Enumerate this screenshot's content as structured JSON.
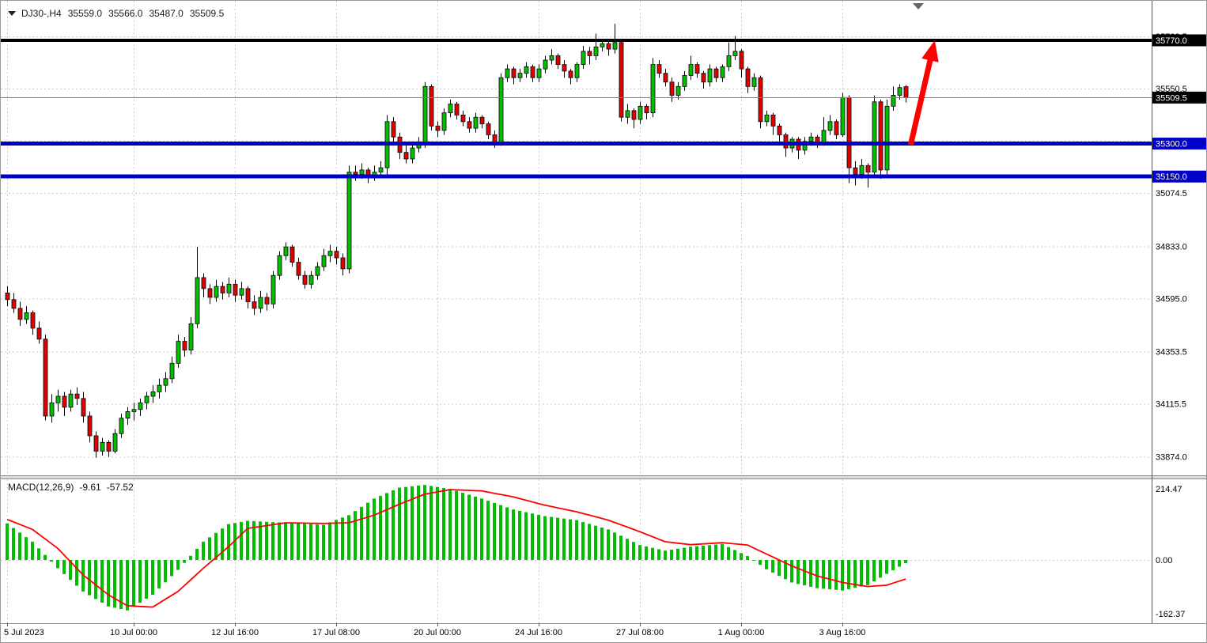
{
  "header": {
    "symbol": "DJ30-,H4",
    "open": "35559.0",
    "high": "35566.0",
    "low": "35487.0",
    "close": "35509.5"
  },
  "colors": {
    "up": "#00BE00",
    "down": "#DE0202",
    "outline": "#000000",
    "grid": "#C8C8C8",
    "blue_level": "#0000C8",
    "black_level": "#000000",
    "current_line": "#808080",
    "macd_hist": "#00BE00",
    "macd_signal": "#FF0000",
    "arrow": "#FF0000",
    "badge_text": "#FFFFFF",
    "axis_text": "#000000"
  },
  "chart_data": [
    {
      "type": "candlestick",
      "title": "DJ30-,H4",
      "ylim": [
        33790,
        35950
      ],
      "grid": true,
      "y_ticks": [
        35788.5,
        35550.5,
        35312.5,
        35074.5,
        34833.0,
        34595.0,
        34353.5,
        34115.5,
        33874.0
      ],
      "x_ticks": [
        {
          "index": 0,
          "label": "5 Jul 2023"
        },
        {
          "index": 20,
          "label": "10 Jul 00:00"
        },
        {
          "index": 36,
          "label": "12 Jul 16:00"
        },
        {
          "index": 52,
          "label": "17 Jul 08:00"
        },
        {
          "index": 68,
          "label": "20 Jul 00:00"
        },
        {
          "index": 84,
          "label": "24 Jul 16:00"
        },
        {
          "index": 100,
          "label": "27 Jul 08:00"
        },
        {
          "index": 116,
          "label": "1 Aug 00:00"
        },
        {
          "index": 132,
          "label": "3 Aug 16:00"
        }
      ],
      "levels": [
        {
          "price": 35770.0,
          "label": "35770.0",
          "color": "#000000",
          "width": 4,
          "name": "resistance-35770"
        },
        {
          "price": 35300.0,
          "label": "35300.0",
          "color": "#0000C8",
          "width": 5,
          "name": "support-35300"
        },
        {
          "price": 35150.0,
          "label": "35150.0",
          "color": "#0000C8",
          "width": 5,
          "name": "support-35150"
        }
      ],
      "current_price": {
        "value": 35509.5,
        "label": "35509.5"
      },
      "annotations": {
        "arrow": {
          "from_index": 142.8,
          "from_price": 35295,
          "to_index": 146.6,
          "to_price": 35770,
          "color": "#FF0000"
        }
      },
      "candles": [
        [
          34620,
          34650,
          34560,
          34590
        ],
        [
          34590,
          34620,
          34530,
          34550
        ],
        [
          34550,
          34580,
          34470,
          34500
        ],
        [
          34500,
          34560,
          34480,
          34530
        ],
        [
          34530,
          34540,
          34430,
          34460
        ],
        [
          34460,
          34490,
          34390,
          34410
        ],
        [
          34410,
          34430,
          34040,
          34060
        ],
        [
          34060,
          34160,
          34030,
          34120
        ],
        [
          34120,
          34180,
          34080,
          34150
        ],
        [
          34150,
          34170,
          34060,
          34100
        ],
        [
          34100,
          34180,
          34080,
          34160
        ],
        [
          34160,
          34190,
          34110,
          34140
        ],
        [
          34140,
          34170,
          34030,
          34060
        ],
        [
          34060,
          34080,
          33940,
          33970
        ],
        [
          33970,
          33990,
          33870,
          33900
        ],
        [
          33900,
          33960,
          33880,
          33940
        ],
        [
          33940,
          33950,
          33874,
          33900
        ],
        [
          33900,
          34000,
          33890,
          33980
        ],
        [
          33980,
          34070,
          33960,
          34050
        ],
        [
          34050,
          34100,
          34020,
          34080
        ],
        [
          34080,
          34120,
          34040,
          34090
        ],
        [
          34090,
          34140,
          34060,
          34120
        ],
        [
          34120,
          34170,
          34090,
          34150
        ],
        [
          34150,
          34200,
          34120,
          34170
        ],
        [
          34170,
          34230,
          34140,
          34200
        ],
        [
          34200,
          34260,
          34170,
          34230
        ],
        [
          34230,
          34330,
          34210,
          34300
        ],
        [
          34300,
          34430,
          34280,
          34400
        ],
        [
          34400,
          34420,
          34330,
          34360
        ],
        [
          34360,
          34510,
          34340,
          34480
        ],
        [
          34480,
          34830,
          34460,
          34690
        ],
        [
          34690,
          34710,
          34600,
          34640
        ],
        [
          34640,
          34660,
          34570,
          34600
        ],
        [
          34600,
          34680,
          34580,
          34650
        ],
        [
          34650,
          34670,
          34590,
          34620
        ],
        [
          34620,
          34690,
          34600,
          34660
        ],
        [
          34660,
          34680,
          34580,
          34610
        ],
        [
          34610,
          34670,
          34590,
          34640
        ],
        [
          34640,
          34650,
          34550,
          34580
        ],
        [
          34580,
          34610,
          34520,
          34550
        ],
        [
          34550,
          34630,
          34530,
          34600
        ],
        [
          34600,
          34620,
          34540,
          34570
        ],
        [
          34570,
          34720,
          34550,
          34700
        ],
        [
          34700,
          34810,
          34680,
          34790
        ],
        [
          34790,
          34850,
          34770,
          34830
        ],
        [
          34830,
          34840,
          34740,
          34760
        ],
        [
          34760,
          34780,
          34680,
          34700
        ],
        [
          34700,
          34720,
          34640,
          34660
        ],
        [
          34660,
          34720,
          34640,
          34700
        ],
        [
          34700,
          34760,
          34680,
          34740
        ],
        [
          34740,
          34820,
          34720,
          34790
        ],
        [
          34790,
          34840,
          34760,
          34810
        ],
        [
          34810,
          34830,
          34750,
          34780
        ],
        [
          34780,
          34800,
          34700,
          34730
        ],
        [
          34730,
          35200,
          34710,
          35170
        ],
        [
          35170,
          35200,
          35130,
          35160
        ],
        [
          35160,
          35210,
          35140,
          35180
        ],
        [
          35180,
          35190,
          35120,
          35150
        ],
        [
          35150,
          35200,
          35130,
          35170
        ],
        [
          35170,
          35220,
          35150,
          35190
        ],
        [
          35190,
          35430,
          35150,
          35400
        ],
        [
          35400,
          35420,
          35300,
          35330
        ],
        [
          35330,
          35350,
          35230,
          35260
        ],
        [
          35260,
          35300,
          35210,
          35230
        ],
        [
          35230,
          35300,
          35210,
          35280
        ],
        [
          35280,
          35330,
          35260,
          35300
        ],
        [
          35300,
          35580,
          35280,
          35560
        ],
        [
          35560,
          35570,
          35360,
          35380
        ],
        [
          35380,
          35400,
          35330,
          35360
        ],
        [
          35360,
          35460,
          35340,
          35440
        ],
        [
          35440,
          35500,
          35420,
          35480
        ],
        [
          35480,
          35490,
          35410,
          35430
        ],
        [
          35430,
          35450,
          35380,
          35400
        ],
        [
          35400,
          35420,
          35350,
          35370
        ],
        [
          35370,
          35440,
          35350,
          35420
        ],
        [
          35420,
          35430,
          35370,
          35390
        ],
        [
          35390,
          35400,
          35320,
          35340
        ],
        [
          35340,
          35360,
          35280,
          35300
        ],
        [
          35300,
          35620,
          35290,
          35600
        ],
        [
          35600,
          35660,
          35580,
          35640
        ],
        [
          35640,
          35650,
          35570,
          35600
        ],
        [
          35600,
          35640,
          35580,
          35620
        ],
        [
          35620,
          35670,
          35600,
          35650
        ],
        [
          35650,
          35660,
          35580,
          35600
        ],
        [
          35600,
          35660,
          35580,
          35640
        ],
        [
          35640,
          35700,
          35620,
          35680
        ],
        [
          35680,
          35730,
          35660,
          35700
        ],
        [
          35700,
          35710,
          35640,
          35660
        ],
        [
          35660,
          35680,
          35600,
          35630
        ],
        [
          35630,
          35640,
          35570,
          35600
        ],
        [
          35600,
          35670,
          35580,
          35660
        ],
        [
          35660,
          35745,
          35640,
          35720
        ],
        [
          35720,
          35740,
          35660,
          35700
        ],
        [
          35700,
          35800,
          35680,
          35740
        ],
        [
          35740,
          35775,
          35720,
          35755
        ],
        [
          35755,
          35765,
          35700,
          35730
        ],
        [
          35730,
          35845,
          35710,
          35760
        ],
        [
          35760,
          35770,
          35400,
          35420
        ],
        [
          35420,
          35480,
          35390,
          35450
        ],
        [
          35450,
          35460,
          35370,
          35410
        ],
        [
          35410,
          35490,
          35390,
          35470
        ],
        [
          35470,
          35480,
          35410,
          35440
        ],
        [
          35440,
          35690,
          35420,
          35660
        ],
        [
          35660,
          35680,
          35600,
          35620
        ],
        [
          35620,
          35640,
          35560,
          35580
        ],
        [
          35580,
          35600,
          35490,
          35520
        ],
        [
          35520,
          35580,
          35500,
          35560
        ],
        [
          35560,
          35630,
          35540,
          35610
        ],
        [
          35610,
          35700,
          35590,
          35660
        ],
        [
          35660,
          35670,
          35600,
          35620
        ],
        [
          35620,
          35630,
          35550,
          35580
        ],
        [
          35580,
          35660,
          35560,
          35640
        ],
        [
          35640,
          35650,
          35580,
          35600
        ],
        [
          35600,
          35660,
          35580,
          35650
        ],
        [
          35650,
          35760,
          35630,
          35700
        ],
        [
          35700,
          35790,
          35680,
          35720
        ],
        [
          35720,
          35730,
          35600,
          35640
        ],
        [
          35640,
          35650,
          35530,
          35560
        ],
        [
          35560,
          35620,
          35540,
          35600
        ],
        [
          35600,
          35610,
          35370,
          35400
        ],
        [
          35400,
          35450,
          35380,
          35430
        ],
        [
          35430,
          35440,
          35340,
          35380
        ],
        [
          35380,
          35390,
          35310,
          35340
        ],
        [
          35340,
          35350,
          35240,
          35280
        ],
        [
          35280,
          35330,
          35260,
          35320
        ],
        [
          35320,
          35330,
          35230,
          35270
        ],
        [
          35270,
          35330,
          35250,
          35310
        ],
        [
          35310,
          35350,
          35290,
          35330
        ],
        [
          35330,
          35340,
          35280,
          35300
        ],
        [
          35300,
          35420,
          35290,
          35360
        ],
        [
          35360,
          35430,
          35340,
          35400
        ],
        [
          35400,
          35410,
          35320,
          35340
        ],
        [
          35340,
          35530,
          35330,
          35510
        ],
        [
          35510,
          35520,
          35120,
          35190
        ],
        [
          35190,
          35220,
          35110,
          35160
        ],
        [
          35160,
          35230,
          35140,
          35200
        ],
        [
          35200,
          35210,
          35100,
          35170
        ],
        [
          35170,
          35520,
          35150,
          35490
        ],
        [
          35490,
          35500,
          35140,
          35180
        ],
        [
          35180,
          35500,
          35160,
          35470
        ],
        [
          35470,
          35560,
          35450,
          35520
        ],
        [
          35520,
          35570,
          35500,
          35555
        ],
        [
          35559,
          35566,
          35487,
          35509.5
        ]
      ]
    },
    {
      "type": "macd",
      "label": "MACD(12,26,9)",
      "values": [
        "-9.61",
        "-57.52"
      ],
      "y_ticks": [
        {
          "value": 214.47,
          "label": "214.47"
        },
        {
          "value": 0,
          "label": "0.00"
        },
        {
          "value": -162.37,
          "label": "-162.37"
        }
      ],
      "points": [
        [
          0,
          110,
          122
        ],
        [
          4,
          55,
          92
        ],
        [
          8,
          -25,
          35
        ],
        [
          12,
          -95,
          -45
        ],
        [
          16,
          -140,
          -105
        ],
        [
          19,
          -152,
          -138
        ],
        [
          23,
          -105,
          -142
        ],
        [
          27,
          -30,
          -95
        ],
        [
          31,
          55,
          -25
        ],
        [
          35,
          108,
          40
        ],
        [
          38,
          118,
          95
        ],
        [
          44,
          112,
          112
        ],
        [
          50,
          106,
          110
        ],
        [
          54,
          135,
          112
        ],
        [
          58,
          185,
          135
        ],
        [
          62,
          218,
          168
        ],
        [
          66,
          226,
          198
        ],
        [
          70,
          214,
          212
        ],
        [
          75,
          185,
          208
        ],
        [
          80,
          152,
          190
        ],
        [
          85,
          132,
          165
        ],
        [
          90,
          120,
          145
        ],
        [
          95,
          92,
          120
        ],
        [
          100,
          45,
          85
        ],
        [
          104,
          28,
          55
        ],
        [
          108,
          40,
          46
        ],
        [
          113,
          48,
          52
        ],
        [
          117,
          12,
          45
        ],
        [
          120,
          -28,
          18
        ],
        [
          124,
          -68,
          -18
        ],
        [
          128,
          -85,
          -48
        ],
        [
          132,
          -92,
          -68
        ],
        [
          136,
          -76,
          -80
        ],
        [
          139,
          -42,
          -76
        ],
        [
          142,
          -9.61,
          -57.52
        ]
      ]
    }
  ]
}
